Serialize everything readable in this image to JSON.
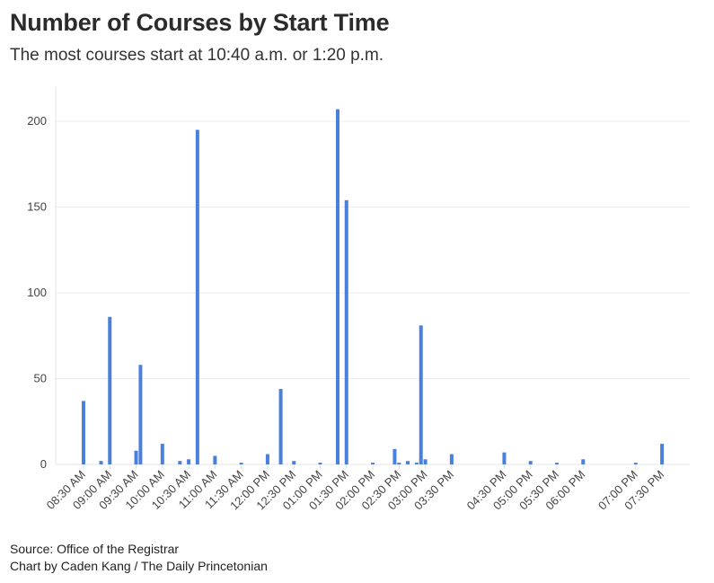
{
  "chart_data": {
    "type": "bar",
    "title": "Number of Courses by Start Time",
    "subtitle": "The most courses start at 10:40 a.m. or 1:20 p.m.",
    "xlabel": "",
    "ylabel": "",
    "xlim": [
      "08:00",
      "20:00"
    ],
    "ylim": [
      0,
      220
    ],
    "yticks": [
      0,
      50,
      100,
      150,
      200
    ],
    "xtick_labels": [
      "08:30 AM",
      "09:00 AM",
      "09:30 AM",
      "10:00 AM",
      "10:30 AM",
      "11:00 AM",
      "11:30 AM",
      "12:00 PM",
      "12:30 PM",
      "01:00 PM",
      "01:30 PM",
      "02:00 PM",
      "02:30 PM",
      "03:00 PM",
      "03:30 PM",
      "04:30 PM",
      "05:00 PM",
      "05:30 PM",
      "06:00 PM",
      "07:00 PM",
      "07:30 PM"
    ],
    "grid": "horizontal",
    "bar_color": "#4a7fdc",
    "points": [
      {
        "x": "08:30",
        "y": 37
      },
      {
        "x": "08:50",
        "y": 2
      },
      {
        "x": "09:00",
        "y": 86
      },
      {
        "x": "09:30",
        "y": 8
      },
      {
        "x": "09:35",
        "y": 58
      },
      {
        "x": "10:00",
        "y": 12
      },
      {
        "x": "10:20",
        "y": 2
      },
      {
        "x": "10:30",
        "y": 3
      },
      {
        "x": "10:40",
        "y": 195
      },
      {
        "x": "11:00",
        "y": 5
      },
      {
        "x": "11:30",
        "y": 1
      },
      {
        "x": "12:00",
        "y": 6
      },
      {
        "x": "12:15",
        "y": 44
      },
      {
        "x": "12:30",
        "y": 2
      },
      {
        "x": "13:00",
        "y": 1
      },
      {
        "x": "13:20",
        "y": 207
      },
      {
        "x": "13:30",
        "y": 154
      },
      {
        "x": "14:00",
        "y": 1
      },
      {
        "x": "14:25",
        "y": 9
      },
      {
        "x": "14:30",
        "y": 1
      },
      {
        "x": "14:40",
        "y": 2
      },
      {
        "x": "14:50",
        "y": 1
      },
      {
        "x": "14:55",
        "y": 81
      },
      {
        "x": "15:00",
        "y": 3
      },
      {
        "x": "15:30",
        "y": 6
      },
      {
        "x": "16:30",
        "y": 7
      },
      {
        "x": "17:00",
        "y": 2
      },
      {
        "x": "17:30",
        "y": 1
      },
      {
        "x": "18:00",
        "y": 3
      },
      {
        "x": "19:00",
        "y": 1
      },
      {
        "x": "19:30",
        "y": 12
      }
    ]
  },
  "footer": {
    "source": "Source: Office of the Registrar",
    "credit": "Chart by Caden Kang / The Daily Princetonian"
  }
}
